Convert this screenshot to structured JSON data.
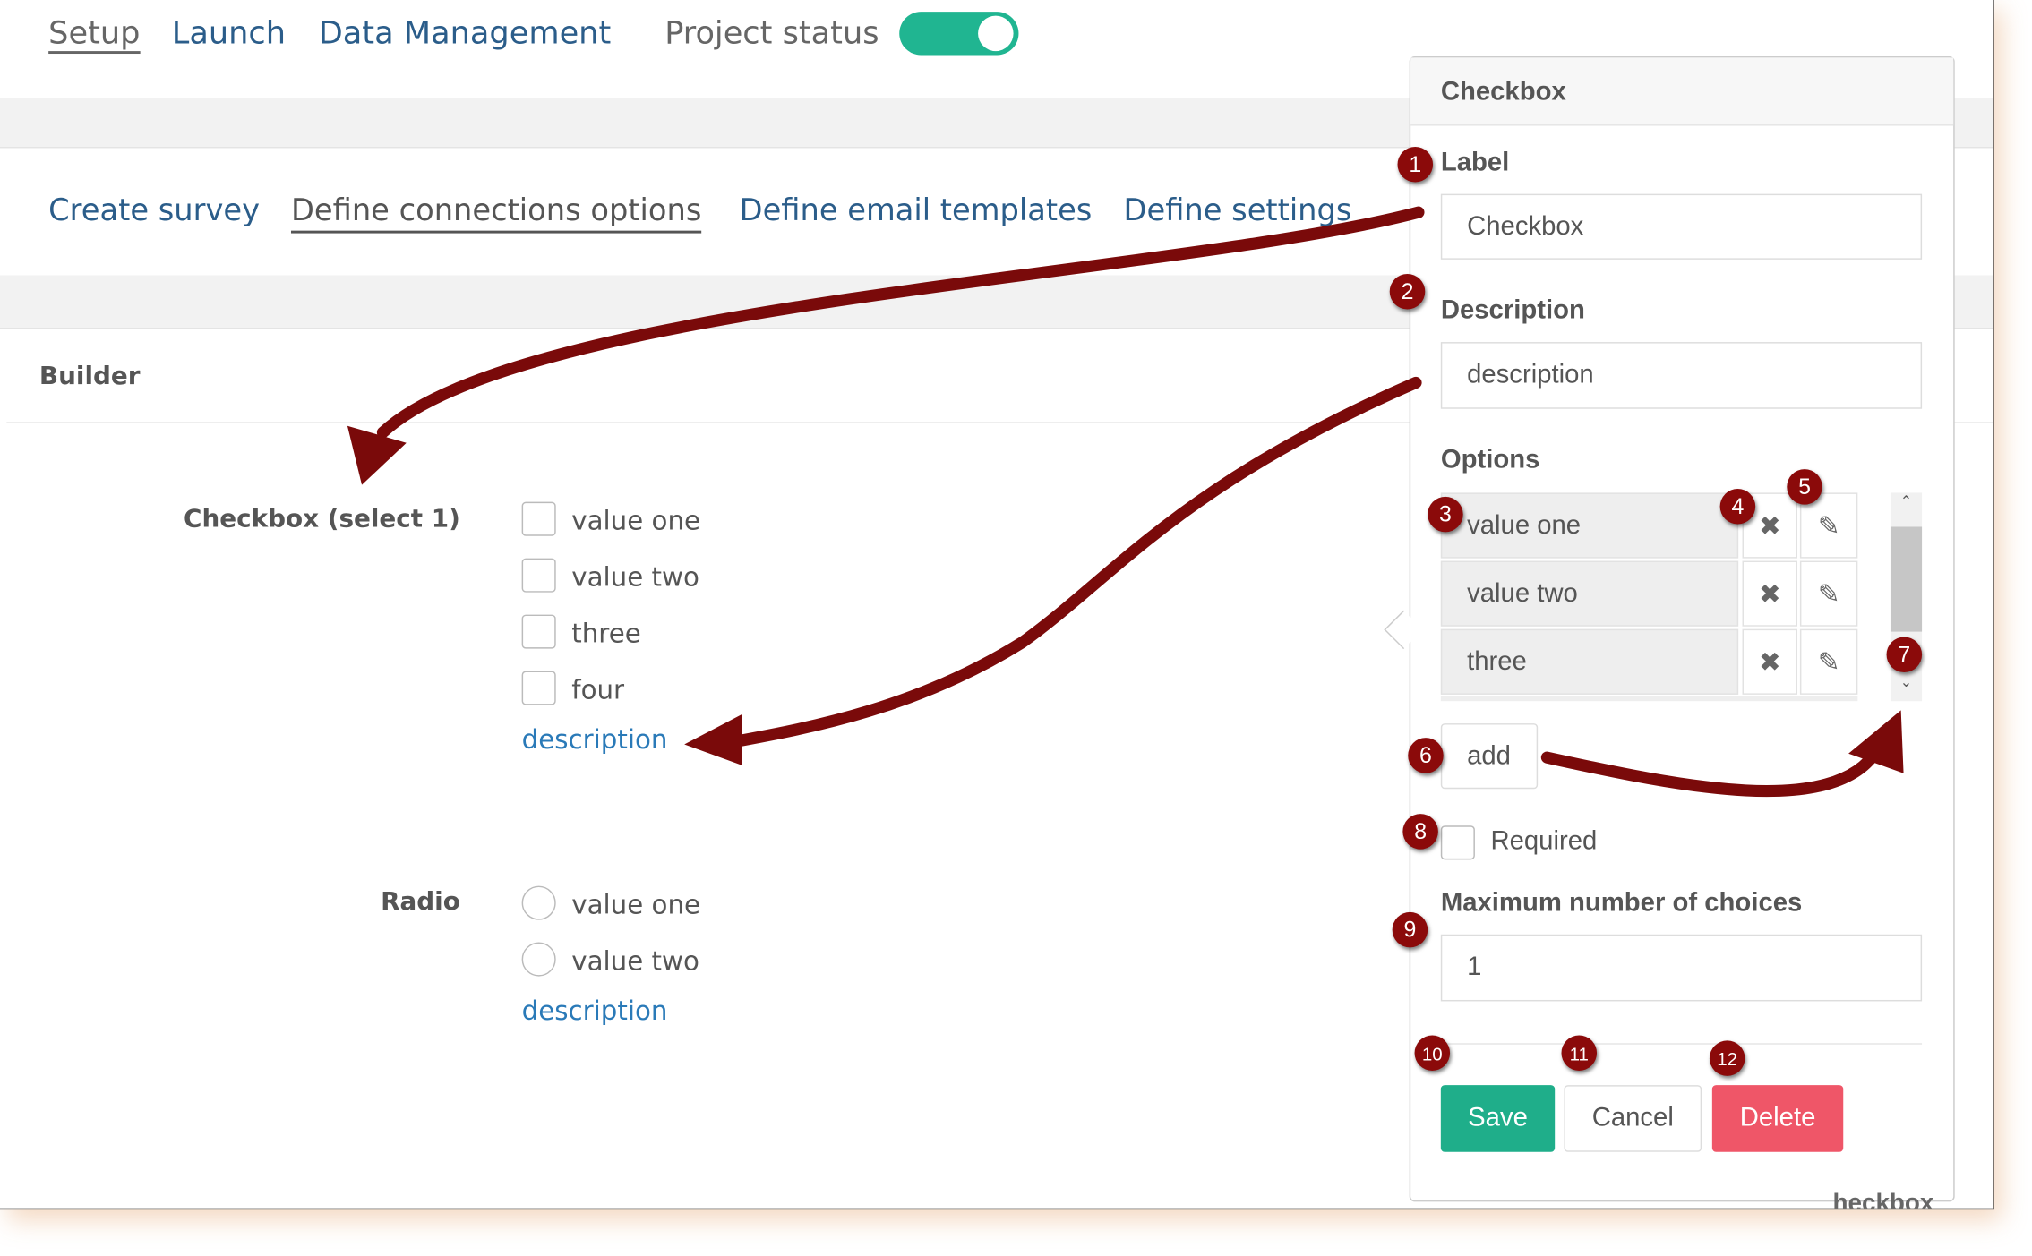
{
  "top_nav": {
    "items": [
      "Setup",
      "Launch",
      "Data Management"
    ],
    "active": "Setup",
    "project_status_label": "Project status",
    "project_status_on": true,
    "toggle_color": "#20b591"
  },
  "tabs": {
    "items": [
      "Create survey",
      "Define connections options",
      "Define email templates",
      "Define settings"
    ],
    "active": "Define connections options"
  },
  "builder": {
    "title": "Builder",
    "checkbox_field": {
      "label": "Checkbox (select 1)",
      "options": [
        "value one",
        "value two",
        "three",
        "four"
      ],
      "description": "description"
    },
    "radio_field": {
      "label": "Radio",
      "options": [
        "value one",
        "value two"
      ],
      "description": "description"
    }
  },
  "panel": {
    "title": "Checkbox",
    "label_label": "Label",
    "label_value": "Checkbox",
    "description_label": "Description",
    "description_value": "description",
    "options_label": "Options",
    "options": [
      "value one",
      "value two",
      "three"
    ],
    "remove_icon": "times-icon",
    "edit_icon": "pencil-icon",
    "add_label": "add",
    "required_label": "Required",
    "required_checked": false,
    "max_choices_label": "Maximum number of choices",
    "max_choices_value": "1",
    "save_label": "Save",
    "cancel_label": "Cancel",
    "delete_label": "Delete",
    "colors": {
      "save": "#1fae8a",
      "delete": "#ef5668"
    }
  },
  "annotations": [
    "1",
    "2",
    "3",
    "4",
    "5",
    "6",
    "7",
    "8",
    "9",
    "10",
    "11",
    "12"
  ],
  "annotation_color": "#8b0a0a",
  "clipped_text": "heckbox"
}
